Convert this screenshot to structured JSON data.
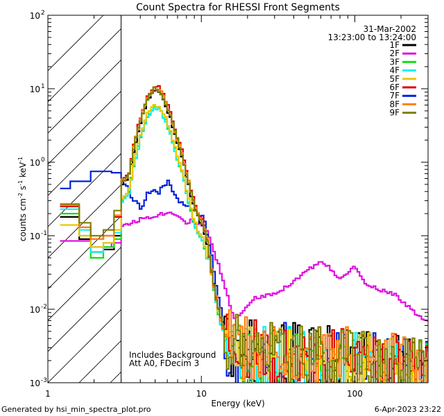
{
  "chart_data": {
    "type": "line",
    "title": "Count Spectra for RHESSI Front Segments",
    "xlabel": "Energy (keV)",
    "ylabel": "counts cm",
    "ylabel_unit_main": "counts cm",
    "ylabel_exp1": "-2",
    "ylabel_s": " s",
    "ylabel_exp2": "-1",
    "ylabel_kev": " keV",
    "ylabel_exp3": "-1",
    "xscale": "log",
    "yscale": "log",
    "xlim": [
      1,
      300
    ],
    "ylim": [
      0.001,
      100
    ],
    "xticks": [
      {
        "value": 1,
        "label": "1"
      },
      {
        "value": 10,
        "label": "10"
      },
      {
        "value": 100,
        "label": "100"
      }
    ],
    "yticks": [
      {
        "value": 0.001,
        "base": "10",
        "exp": "-3"
      },
      {
        "value": 0.01,
        "base": "10",
        "exp": "-2"
      },
      {
        "value": 0.1,
        "base": "10",
        "exp": "-1"
      },
      {
        "value": 1,
        "base": "10",
        "exp": "0"
      },
      {
        "value": 10,
        "base": "10",
        "exp": "1"
      },
      {
        "value": 100,
        "base": "10",
        "exp": "2"
      }
    ],
    "hatched_region_keV": [
      1,
      3
    ],
    "date": "31-Mar-2002",
    "time_range": "13:23:00 to 13:24:00",
    "annotation_line1": "Includes Background",
    "annotation_line2": "Att A0, FDecim 3",
    "series": [
      {
        "name": "1F",
        "color": "#000000"
      },
      {
        "name": "2F",
        "color": "#e010e0"
      },
      {
        "name": "3F",
        "color": "#10e010"
      },
      {
        "name": "4F",
        "color": "#10f0f0"
      },
      {
        "name": "5F",
        "color": "#e8c800"
      },
      {
        "name": "6F",
        "color": "#e00000"
      },
      {
        "name": "7F",
        "color": "#0020d8"
      },
      {
        "name": "8F",
        "color": "#ff8010"
      },
      {
        "name": "9F",
        "color": "#808000"
      }
    ],
    "low_segments": [
      {
        "name": "2F",
        "points": [
          [
            1.2,
            0.085
          ],
          [
            1.9,
            0.07
          ],
          [
            2.6,
            0.08
          ],
          [
            3,
            0.08
          ]
        ]
      },
      {
        "name": "7F",
        "points": [
          [
            1.2,
            0.44
          ],
          [
            1.4,
            0.55
          ],
          [
            1.9,
            0.75
          ],
          [
            2.6,
            0.72
          ],
          [
            3,
            0.6
          ]
        ]
      },
      {
        "name": "3F",
        "points": [
          [
            1.2,
            0.2
          ],
          [
            1.6,
            0.1
          ],
          [
            1.9,
            0.05
          ],
          [
            2.3,
            0.07
          ],
          [
            2.7,
            0.09
          ],
          [
            3,
            0.18
          ]
        ]
      },
      {
        "name": "4F",
        "points": [
          [
            1.2,
            0.23
          ],
          [
            1.6,
            0.12
          ],
          [
            1.9,
            0.06
          ],
          [
            2.3,
            0.08
          ],
          [
            2.7,
            0.11
          ],
          [
            3,
            0.2
          ]
        ]
      },
      {
        "name": "1F",
        "points": [
          [
            1.2,
            0.18
          ],
          [
            1.6,
            0.09
          ],
          [
            1.9,
            0.06
          ],
          [
            2.3,
            0.065
          ],
          [
            2.7,
            0.1
          ],
          [
            3,
            0.3
          ]
        ]
      },
      {
        "name": "5F",
        "points": [
          [
            1.2,
            0.14
          ],
          [
            1.6,
            0.1
          ],
          [
            1.9,
            0.07
          ],
          [
            2.3,
            0.08
          ],
          [
            2.7,
            0.12
          ],
          [
            3,
            0.3
          ]
        ]
      },
      {
        "name": "6F",
        "points": [
          [
            1.2,
            0.25
          ],
          [
            1.6,
            0.13
          ],
          [
            1.9,
            0.09
          ],
          [
            2.3,
            0.1
          ],
          [
            2.7,
            0.18
          ],
          [
            3,
            0.3
          ]
        ]
      },
      {
        "name": "8F",
        "points": [
          [
            1.2,
            0.26
          ],
          [
            1.6,
            0.13
          ],
          [
            1.9,
            0.09
          ],
          [
            2.3,
            0.1
          ],
          [
            2.7,
            0.19
          ],
          [
            3,
            0.3
          ]
        ]
      },
      {
        "name": "9F",
        "points": [
          [
            1.2,
            0.27
          ],
          [
            1.6,
            0.15
          ],
          [
            1.9,
            0.1
          ],
          [
            2.3,
            0.12
          ],
          [
            2.7,
            0.22
          ],
          [
            3,
            0.32
          ]
        ]
      }
    ],
    "main_profile": [
      [
        3,
        0.5
      ],
      [
        3.3,
        0.6
      ],
      [
        3.6,
        1.6
      ],
      [
        4,
        4
      ],
      [
        4.4,
        7
      ],
      [
        4.8,
        9.5
      ],
      [
        5.2,
        9
      ],
      [
        5.7,
        6.5
      ],
      [
        6.2,
        4
      ],
      [
        6.8,
        2
      ],
      [
        7.4,
        1.2
      ],
      [
        8,
        0.55
      ],
      [
        8.7,
        0.28
      ],
      [
        9.4,
        0.17
      ],
      [
        10,
        0.14
      ],
      [
        10.5,
        0.1
      ],
      [
        11,
        0.06
      ],
      [
        11.5,
        0.032
      ],
      [
        12,
        0.018
      ],
      [
        12.5,
        0.012
      ],
      [
        13,
        0.008
      ],
      [
        13.5,
        0.006
      ],
      [
        14,
        0.005
      ],
      [
        15,
        0.004
      ],
      [
        17,
        0.0035
      ],
      [
        20,
        0.003
      ],
      [
        25,
        0.0028
      ],
      [
        30,
        0.0027
      ],
      [
        40,
        0.0026
      ],
      [
        50,
        0.0025
      ],
      [
        60,
        0.0024
      ],
      [
        80,
        0.0023
      ],
      [
        100,
        0.0022
      ],
      [
        150,
        0.002
      ],
      [
        200,
        0.0018
      ],
      [
        300,
        0.0015
      ]
    ],
    "main_scale": {
      "1F": 1.0,
      "3F": 0.6,
      "4F": 0.6,
      "5F": 0.65,
      "6F": 1.15,
      "8F": 1.1,
      "9F": 1.05
    },
    "series_2F_profile": [
      [
        3,
        0.14
      ],
      [
        3.5,
        0.15
      ],
      [
        4,
        0.17
      ],
      [
        4.5,
        0.18
      ],
      [
        5,
        0.19
      ],
      [
        5.5,
        0.2
      ],
      [
        6.2,
        0.21
      ],
      [
        7,
        0.19
      ],
      [
        7.8,
        0.15
      ],
      [
        8.5,
        0.16
      ],
      [
        9.5,
        0.14
      ],
      [
        10.5,
        0.13
      ],
      [
        11.2,
        0.09
      ],
      [
        12,
        0.055
      ],
      [
        13,
        0.035
      ],
      [
        14,
        0.02
      ],
      [
        15,
        0.012
      ],
      [
        16,
        0.0075
      ],
      [
        17,
        0.0082
      ],
      [
        18,
        0.009
      ],
      [
        20,
        0.012
      ],
      [
        22,
        0.014
      ],
      [
        25,
        0.015
      ],
      [
        30,
        0.017
      ],
      [
        35,
        0.02
      ],
      [
        40,
        0.025
      ],
      [
        45,
        0.03
      ],
      [
        50,
        0.036
      ],
      [
        55,
        0.04
      ],
      [
        60,
        0.043
      ],
      [
        65,
        0.04
      ],
      [
        72,
        0.03
      ],
      [
        80,
        0.025
      ],
      [
        90,
        0.032
      ],
      [
        96,
        0.04
      ],
      [
        105,
        0.03
      ],
      [
        115,
        0.022
      ],
      [
        130,
        0.02
      ],
      [
        150,
        0.018
      ],
      [
        170,
        0.017
      ],
      [
        200,
        0.013
      ],
      [
        240,
        0.009
      ],
      [
        280,
        0.007
      ],
      [
        300,
        0.0065
      ]
    ],
    "series_7F_profile": [
      [
        3,
        0.6
      ],
      [
        3.3,
        0.4
      ],
      [
        3.6,
        0.3
      ],
      [
        4,
        0.24
      ],
      [
        4.4,
        0.38
      ],
      [
        4.8,
        0.42
      ],
      [
        5.2,
        0.38
      ],
      [
        5.6,
        0.48
      ],
      [
        6,
        0.55
      ],
      [
        6.5,
        0.4
      ],
      [
        7,
        0.3
      ],
      [
        7.5,
        0.26
      ],
      [
        8,
        0.25
      ],
      [
        8.7,
        0.22
      ],
      [
        9.4,
        0.2
      ],
      [
        10,
        0.18
      ],
      [
        10.5,
        0.14
      ],
      [
        11,
        0.08
      ],
      [
        11.5,
        0.05
      ],
      [
        12,
        0.03
      ],
      [
        12.5,
        0.018
      ],
      [
        13,
        0.012
      ],
      [
        13.5,
        0.008
      ],
      [
        14,
        0.004
      ],
      [
        15,
        0.002
      ],
      [
        16,
        0.0015
      ],
      [
        18,
        0.002
      ],
      [
        20,
        0.0025
      ],
      [
        25,
        0.0028
      ],
      [
        30,
        0.0025
      ],
      [
        40,
        0.0028
      ],
      [
        60,
        0.0026
      ],
      [
        80,
        0.0024
      ],
      [
        100,
        0.0022
      ],
      [
        150,
        0.002
      ],
      [
        200,
        0.0018
      ],
      [
        300,
        0.0014
      ]
    ]
  },
  "footer": {
    "generated_by": "Generated by hsi_min_spectra_plot.pro",
    "timestamp": "6-Apr-2023 23:22"
  }
}
